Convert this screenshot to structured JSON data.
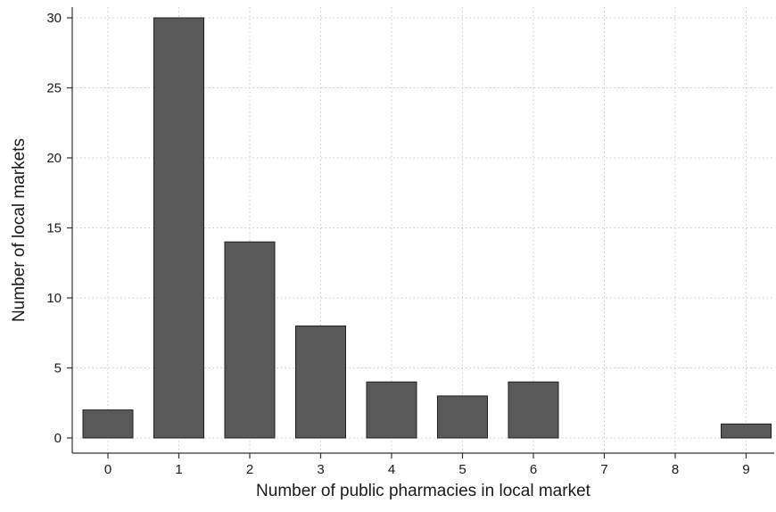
{
  "chart_data": {
    "type": "bar",
    "title": "",
    "xlabel": "Number of public pharmacies in local market",
    "ylabel": "Number of local markets",
    "categories": [
      "0",
      "1",
      "2",
      "3",
      "4",
      "5",
      "6",
      "7",
      "8",
      "9"
    ],
    "values": [
      2,
      30,
      14,
      8,
      4,
      3,
      4,
      0,
      0,
      1
    ],
    "ylim": [
      0,
      30
    ],
    "yticks": [
      "0",
      "5",
      "10",
      "15",
      "20",
      "25",
      "30"
    ],
    "grid": true,
    "colors": {
      "bar_fill": "#595959",
      "bar_stroke": "#1e1e1e",
      "grid": "#c8c8c8",
      "axis": "#333333"
    }
  }
}
